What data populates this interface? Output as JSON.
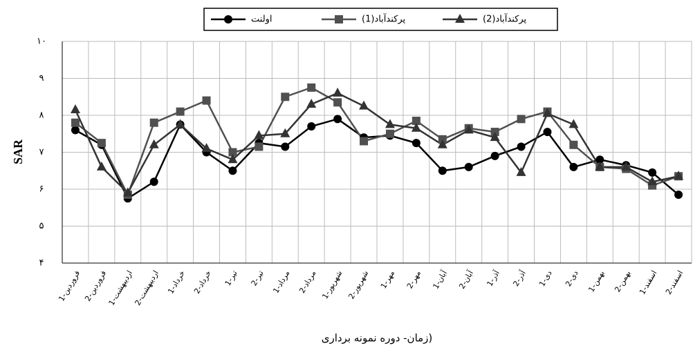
{
  "chart_data": {
    "type": "line",
    "y_label": "SAR",
    "x_label": "زمان- دوره نمونه برداری)",
    "categories": [
      "1-فروردین",
      "2-فروردین",
      "1-اردیبهشت",
      "2-اردیبهشت",
      "1-خرداد",
      "2-خرداد",
      "1-تیر",
      "2-تیر",
      "1-مرداد",
      "2-مرداد",
      "1-شهریور",
      "2-شهریور",
      "1-مهر",
      "2-مهر",
      "1-آبان",
      "2-آبان",
      "1-آذر",
      "2-آذر",
      "1-دی",
      "2-دی",
      "1-بهمن",
      "2-بهمن",
      "1-اسفند",
      "2-اسفند"
    ],
    "series": [
      {
        "name": "اولنت",
        "color": "#000000",
        "marker": "circle",
        "values": [
          7.6,
          7.2,
          5.75,
          6.2,
          7.75,
          7.0,
          6.5,
          7.25,
          7.15,
          7.7,
          7.9,
          7.4,
          7.45,
          7.25,
          6.5,
          6.6,
          6.9,
          7.15,
          7.55,
          6.6,
          6.8,
          6.65,
          6.45,
          5.85
        ]
      },
      {
        "name": "(1)پرکندآباد",
        "color": "#505050",
        "marker": "square",
        "values": [
          7.8,
          7.25,
          5.85,
          7.8,
          8.1,
          8.4,
          7.0,
          7.15,
          8.5,
          8.75,
          8.35,
          7.3,
          7.5,
          7.85,
          7.35,
          7.65,
          7.55,
          7.9,
          8.1,
          7.2,
          6.6,
          6.55,
          6.1,
          6.35
        ]
      },
      {
        "name": "(2)پرکندآباد",
        "color": "#333333",
        "marker": "triangle",
        "values": [
          8.15,
          6.6,
          5.9,
          7.2,
          7.75,
          7.1,
          6.8,
          7.45,
          7.5,
          8.3,
          8.6,
          8.25,
          7.75,
          7.65,
          7.2,
          7.6,
          7.4,
          6.45,
          8.05,
          7.75,
          6.6,
          6.6,
          6.2,
          6.35
        ]
      }
    ],
    "ylim": [
      4,
      10
    ],
    "yticks": [
      {
        "value": 4,
        "label": "۴"
      },
      {
        "value": 5,
        "label": "۵"
      },
      {
        "value": 6,
        "label": "۶"
      },
      {
        "value": 7,
        "label": "۷"
      },
      {
        "value": 8,
        "label": "۸"
      },
      {
        "value": 9,
        "label": "۹"
      },
      {
        "value": 10,
        "label": "۱۰"
      }
    ],
    "grid": true
  }
}
